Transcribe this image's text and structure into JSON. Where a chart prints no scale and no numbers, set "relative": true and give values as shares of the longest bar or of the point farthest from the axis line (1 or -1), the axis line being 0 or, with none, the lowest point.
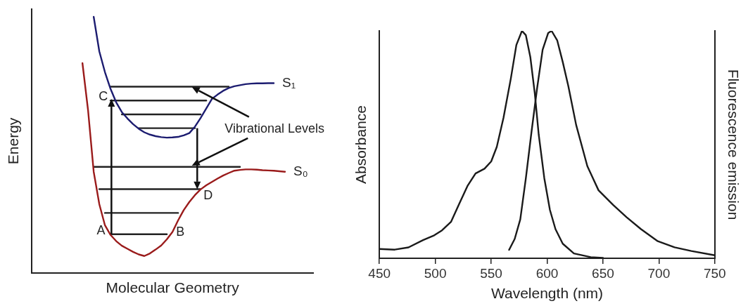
{
  "chart_data": [
    {
      "type": "line",
      "relative": true,
      "xlabel": "Molecular Geometry",
      "ylabel": "Energy",
      "tick_labels": false,
      "marker": "none",
      "categories": [
        null,
        null,
        null,
        null,
        null,
        null,
        null,
        null,
        null,
        null,
        null,
        null,
        null,
        null,
        null,
        null,
        null,
        null,
        null,
        null,
        null,
        null,
        null,
        null,
        null,
        null,
        null,
        null,
        null,
        null,
        null,
        null,
        null,
        null,
        null,
        null,
        null,
        null,
        null,
        null,
        null,
        null,
        null,
        null,
        null,
        null,
        null,
        null,
        null,
        null,
        null
      ],
      "annotations": [
        "A",
        "B",
        "C",
        "D",
        "Vibrational Levels"
      ],
      "series": [
        {
          "name": "S₁",
          "color": "#1c1c70",
          "values": [
            null,
            null,
            null,
            null,
            null,
            null,
            null,
            null,
            null,
            null,
            null,
            1.0,
            0.865,
            0.784,
            0.718,
            0.666,
            0.628,
            0.603,
            0.581,
            0.563,
            0.549,
            0.54,
            0.534,
            0.53,
            0.528,
            0.529,
            0.531,
            0.537,
            0.546,
            0.571,
            0.605,
            0.642,
            0.679,
            0.696,
            0.711,
            0.722,
            0.729,
            0.733,
            0.737,
            0.739,
            0.74,
            0.74,
            0.741,
            0.741,
            null,
            null,
            null,
            null,
            null,
            null,
            null
          ]
        },
        {
          "name": "S₀",
          "color": "#9a1b1b",
          "values": [
            null,
            null,
            null,
            null,
            null,
            null,
            null,
            null,
            null,
            0.819,
            0.635,
            0.395,
            0.268,
            0.186,
            0.148,
            0.124,
            0.106,
            0.094,
            0.082,
            0.072,
            0.066,
            0.076,
            0.091,
            0.107,
            0.131,
            0.16,
            0.205,
            0.245,
            0.277,
            0.304,
            0.326,
            0.342,
            0.355,
            0.368,
            0.38,
            0.39,
            0.399,
            0.402,
            0.404,
            0.404,
            0.403,
            0.401,
            0.4,
            0.399,
            0.397,
            0.395,
            null,
            null,
            null,
            null,
            null
          ]
        },
        {
          "color": "#222222",
          "values": [
            null,
            null,
            null,
            null,
            null,
            null,
            null,
            null,
            null,
            null,
            null,
            null,
            null,
            null,
            0.727,
            0.727,
            0.727,
            0.727,
            0.727,
            0.727,
            0.727,
            0.727,
            0.727,
            0.727,
            0.727,
            0.727,
            0.727,
            0.727,
            0.727,
            0.727,
            0.727,
            0.727,
            0.727,
            0.727,
            0.727,
            0.727,
            null,
            null,
            null,
            null,
            null,
            null,
            null,
            null,
            null,
            null,
            null,
            null,
            null,
            null,
            null
          ]
        },
        {
          "color": "#222222",
          "values": [
            null,
            null,
            null,
            null,
            null,
            null,
            null,
            null,
            null,
            null,
            null,
            null,
            null,
            null,
            0.673,
            0.673,
            0.673,
            0.673,
            0.673,
            0.673,
            0.673,
            0.673,
            0.673,
            0.673,
            0.673,
            0.673,
            0.673,
            0.673,
            0.673,
            0.673,
            0.673,
            0.673,
            null,
            null,
            null,
            null,
            null,
            null,
            null,
            null,
            null,
            null,
            null,
            null,
            null,
            null,
            null,
            null,
            null,
            null,
            null
          ]
        },
        {
          "color": "#222222",
          "values": [
            null,
            null,
            null,
            null,
            null,
            null,
            null,
            null,
            null,
            null,
            null,
            null,
            null,
            null,
            null,
            null,
            0.619,
            0.619,
            0.619,
            0.619,
            0.619,
            0.619,
            0.619,
            0.619,
            0.619,
            0.619,
            0.619,
            0.619,
            0.619,
            0.619,
            0.619,
            null,
            null,
            null,
            null,
            null,
            null,
            null,
            null,
            null,
            null,
            null,
            null,
            null,
            null,
            null,
            null,
            null,
            null,
            null,
            null
          ]
        },
        {
          "color": "#222222",
          "values": [
            null,
            null,
            null,
            null,
            null,
            null,
            null,
            null,
            null,
            null,
            null,
            null,
            null,
            null,
            null,
            null,
            null,
            null,
            null,
            0.565,
            0.565,
            0.565,
            0.565,
            0.565,
            0.565,
            0.565,
            0.565,
            0.565,
            0.565,
            0.565,
            null,
            null,
            null,
            null,
            null,
            null,
            null,
            null,
            null,
            null,
            null,
            null,
            null,
            null,
            null,
            null,
            null,
            null,
            null,
            null,
            null
          ]
        },
        {
          "color": "#222222",
          "values": [
            null,
            null,
            null,
            null,
            null,
            null,
            null,
            null,
            null,
            null,
            null,
            0.414,
            0.414,
            0.414,
            0.414,
            0.414,
            0.414,
            0.414,
            0.414,
            0.414,
            0.414,
            0.414,
            0.414,
            0.414,
            0.414,
            0.414,
            0.414,
            0.414,
            0.414,
            0.414,
            0.414,
            0.414,
            0.414,
            0.414,
            0.414,
            0.414,
            0.414,
            0.414,
            null,
            null,
            null,
            null,
            null,
            null,
            null,
            null,
            null,
            null,
            null,
            null,
            null
          ]
        },
        {
          "color": "#222222",
          "values": [
            null,
            null,
            null,
            null,
            null,
            null,
            null,
            null,
            null,
            null,
            null,
            null,
            0.327,
            0.327,
            0.327,
            0.327,
            0.327,
            0.327,
            0.327,
            0.327,
            0.327,
            0.327,
            0.327,
            0.327,
            0.327,
            0.327,
            0.327,
            0.327,
            0.327,
            0.327,
            0.327,
            null,
            null,
            null,
            null,
            null,
            null,
            null,
            null,
            null,
            null,
            null,
            null,
            null,
            null,
            null,
            null,
            null,
            null,
            null,
            null
          ]
        },
        {
          "color": "#222222",
          "values": [
            null,
            null,
            null,
            null,
            null,
            null,
            null,
            null,
            null,
            null,
            null,
            null,
            null,
            0.234,
            0.234,
            0.234,
            0.234,
            0.234,
            0.234,
            0.234,
            0.234,
            0.234,
            0.234,
            0.234,
            0.234,
            0.234,
            0.234,
            null,
            null,
            null,
            null,
            null,
            null,
            null,
            null,
            null,
            null,
            null,
            null,
            null,
            null,
            null,
            null,
            null,
            null,
            null,
            null,
            null,
            null,
            null,
            null
          ]
        },
        {
          "color": "#222222",
          "values": [
            null,
            null,
            null,
            null,
            null,
            null,
            null,
            null,
            null,
            null,
            null,
            null,
            null,
            null,
            0.151,
            0.151,
            0.151,
            0.151,
            0.151,
            0.151,
            0.151,
            0.151,
            0.151,
            0.151,
            0.151,
            null,
            null,
            null,
            null,
            null,
            null,
            null,
            null,
            null,
            null,
            null,
            null,
            null,
            null,
            null,
            null,
            null,
            null,
            null,
            null,
            null,
            null,
            null,
            null,
            null,
            null
          ]
        }
      ]
    },
    {
      "type": "line",
      "relative": true,
      "xlabel": "Wavelength (nm)",
      "ylabel": "Absorbance",
      "y2label": "Fluorescence emission",
      "tick_labels": "x",
      "marker": "none",
      "xlim": [
        450,
        750
      ],
      "xticks": [
        450,
        500,
        550,
        600,
        650,
        700,
        750
      ],
      "series": [
        {
          "color": "#1a1a1a",
          "x": [
            450,
            463.75,
            476,
            489,
            499,
            506,
            514,
            521,
            529,
            536,
            544,
            550,
            555,
            561,
            567.5,
            572.5,
            577.5,
            581,
            585,
            589,
            592.5,
            597.5,
            602.5,
            607.5,
            614,
            624,
            639,
            650
          ],
          "values": [
            0.041,
            0.038,
            0.048,
            0.08,
            0.101,
            0.123,
            0.16,
            0.235,
            0.32,
            0.373,
            0.394,
            0.426,
            0.49,
            0.618,
            0.789,
            0.938,
            1.0,
            0.981,
            0.885,
            0.725,
            0.544,
            0.352,
            0.213,
            0.128,
            0.064,
            0.021,
            0.005,
            0.002
          ]
        },
        {
          "color": "#1a1a1a",
          "axis": "y2",
          "x": [
            566,
            571,
            576,
            581,
            586,
            591,
            596,
            601,
            604,
            609,
            614,
            619,
            626,
            636,
            646,
            659,
            671,
            684,
            699,
            714,
            729,
            750
          ],
          "values": [
            0.037,
            0.085,
            0.171,
            0.352,
            0.554,
            0.746,
            0.917,
            0.991,
            1.0,
            0.959,
            0.863,
            0.757,
            0.586,
            0.405,
            0.299,
            0.235,
            0.181,
            0.128,
            0.075,
            0.048,
            0.032,
            0.013
          ]
        }
      ]
    }
  ]
}
